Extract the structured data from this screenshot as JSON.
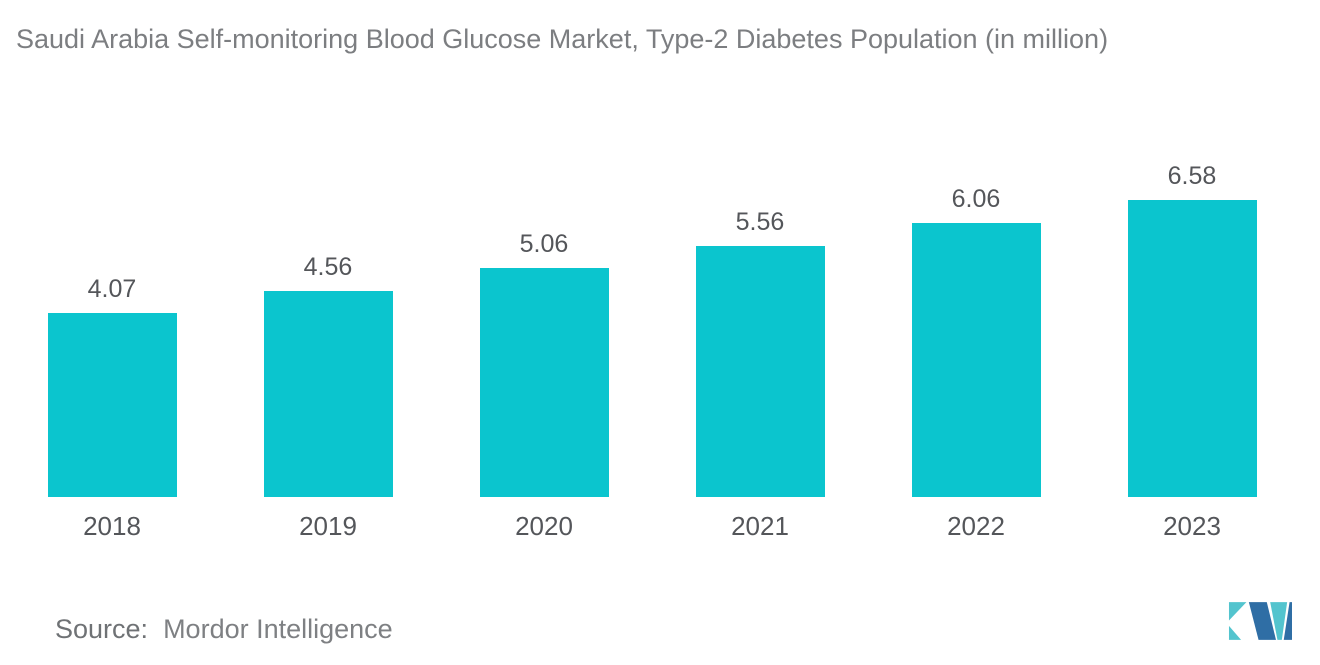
{
  "title": "Saudi Arabia Self-monitoring Blood Glucose Market, Type-2 Diabetes Population (in million)",
  "source": {
    "label": "Source: ",
    "value": " Mordor Intelligence"
  },
  "colors": {
    "bar": "#0BC5CE",
    "title_text": "#7C7E81",
    "axis_label_text": "#54565A",
    "source_text": "#7E8083",
    "logo_teal": "#53C4CE",
    "logo_blue": "#2F6EA5"
  },
  "logo": {
    "name": "mordor-intelligence-logo"
  },
  "chart_data": {
    "type": "bar",
    "title": "Saudi Arabia Self-monitoring Blood Glucose Market, Type-2 Diabetes Population (in million)",
    "categories": [
      "2018",
      "2019",
      "2020",
      "2021",
      "2022",
      "2023"
    ],
    "values": [
      4.07,
      4.56,
      5.06,
      5.56,
      6.06,
      6.58
    ],
    "value_labels": [
      "4.07",
      "4.56",
      "5.06",
      "5.56",
      "6.06",
      "6.58"
    ],
    "series_name": "Type-2 Diabetes Population (in million)",
    "xlabel": "",
    "ylabel": "",
    "ylim": [
      0,
      7.35
    ],
    "grid": false,
    "legend": false,
    "bar_color": "#0BC5CE",
    "data_labels_shown": true,
    "axis_lines_shown": false
  }
}
